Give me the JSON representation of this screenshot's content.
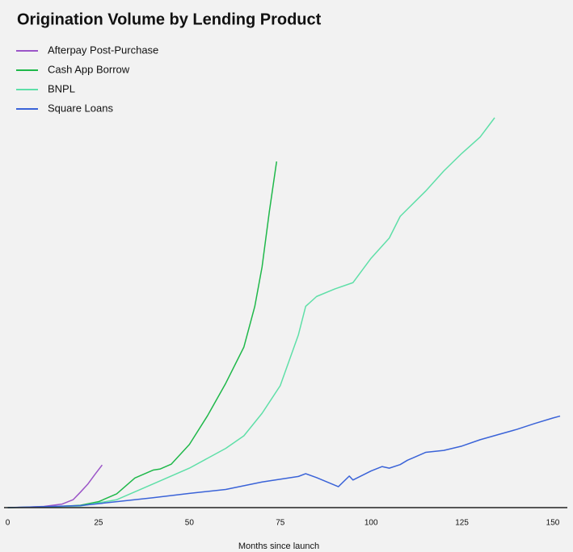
{
  "chart_data": {
    "type": "line",
    "title": "Origination Volume by Lending Product",
    "x_label": "Months since launch",
    "xlim": [
      -1,
      154
    ],
    "xticks": [
      0,
      25,
      50,
      75,
      100,
      125,
      150
    ],
    "ylim": [
      0,
      100
    ],
    "legend": "top-left",
    "series": [
      {
        "name": "Afterpay Post-Purchase",
        "color": "#9b55c8",
        "x": [
          0,
          5,
          10,
          15,
          18,
          20,
          22,
          24,
          26
        ],
        "values": [
          0,
          0.1,
          0.3,
          0.9,
          2,
          3.9,
          5.9,
          8.4,
          10.8
        ]
      },
      {
        "name": "Cash App Borrow",
        "color": "#1fb84a",
        "x": [
          0,
          10,
          20,
          25,
          30,
          35,
          40,
          42,
          45,
          50,
          55,
          60,
          65,
          68,
          70,
          72,
          74
        ],
        "values": [
          0,
          0.1,
          0.6,
          1.5,
          3.5,
          7.5,
          9.5,
          9.8,
          11,
          16,
          23.3,
          31.5,
          40.7,
          51,
          61,
          75,
          87.7
        ]
      },
      {
        "name": "BNPL",
        "color": "#5fdfa8",
        "x": [
          0,
          20,
          30,
          40,
          50,
          55,
          60,
          65,
          70,
          75,
          80,
          82,
          85,
          90,
          95,
          100,
          105,
          108,
          115,
          120,
          125,
          130,
          134
        ],
        "values": [
          0,
          0.4,
          2,
          6,
          10,
          12.5,
          15,
          18.2,
          23.9,
          30.9,
          43.8,
          51,
          53.5,
          55.4,
          57,
          63.2,
          68.3,
          73.8,
          80.2,
          85.3,
          89.8,
          93.9,
          98.8
        ]
      },
      {
        "name": "Square Loans",
        "color": "#3a63d8",
        "x": [
          0,
          20,
          30,
          40,
          50,
          60,
          70,
          80,
          82,
          85,
          91,
          94,
          95,
          100,
          103,
          105,
          108,
          110,
          115,
          120,
          125,
          130,
          135,
          140,
          145,
          150,
          152
        ],
        "values": [
          0,
          0.5,
          1.5,
          2.5,
          3.6,
          4.6,
          6.5,
          7.9,
          8.6,
          7.6,
          5.3,
          8,
          7,
          9.3,
          10.4,
          10,
          10.9,
          12,
          14,
          14.5,
          15.6,
          17.2,
          18.5,
          19.8,
          21.3,
          22.7,
          23.2
        ]
      }
    ]
  }
}
